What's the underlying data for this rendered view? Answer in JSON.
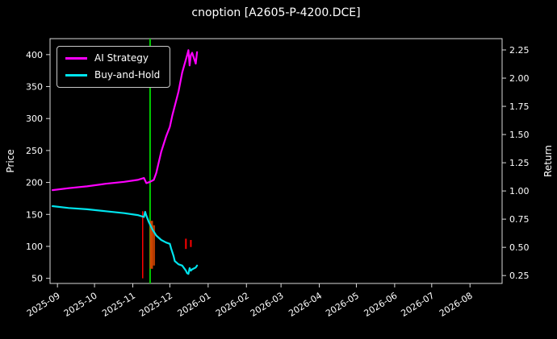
{
  "chart_data": {
    "type": "line",
    "title": "cnoption [A2605-P-4200.DCE]",
    "ylabel_left": "Price",
    "ylabel_right": "Return",
    "background": "#000000",
    "text_color": "#ffffff",
    "grid": false,
    "legend_position": "upper-left",
    "x_domain": [
      "2025-08-26",
      "2026-08-27"
    ],
    "x_tick_labels": [
      "2025-09",
      "2025-10",
      "2025-11",
      "2025-12",
      "2026-01",
      "2026-02",
      "2026-03",
      "2026-04",
      "2026-05",
      "2026-06",
      "2026-07",
      "2026-08"
    ],
    "ylim_left": [
      42,
      425
    ],
    "y_ticks_left": [
      50,
      100,
      150,
      200,
      250,
      300,
      350,
      400
    ],
    "ylim_right": [
      0.18,
      2.35
    ],
    "y_ticks_right": [
      0.25,
      0.5,
      0.75,
      1.0,
      1.25,
      1.5,
      1.75,
      2.0,
      2.25
    ],
    "legend": [
      {
        "label": "AI Strategy",
        "color": "#ff00ff"
      },
      {
        "label": "Buy-and-Hold",
        "color": "#00e5ee"
      }
    ],
    "series": [
      {
        "name": "AI Strategy",
        "color": "#ff00ff",
        "axis": "left",
        "points": [
          [
            "2025-08-28",
            188
          ],
          [
            "2025-09-10",
            191
          ],
          [
            "2025-09-25",
            194
          ],
          [
            "2025-10-10",
            198
          ],
          [
            "2025-10-25",
            201
          ],
          [
            "2025-11-05",
            204
          ],
          [
            "2025-11-10",
            207
          ],
          [
            "2025-11-12",
            199
          ],
          [
            "2025-11-15",
            201
          ],
          [
            "2025-11-18",
            204
          ],
          [
            "2025-11-20",
            215
          ],
          [
            "2025-11-24",
            248
          ],
          [
            "2025-11-28",
            272
          ],
          [
            "2025-12-01",
            287
          ],
          [
            "2025-12-03",
            305
          ],
          [
            "2025-12-08",
            342
          ],
          [
            "2025-12-11",
            372
          ],
          [
            "2025-12-15",
            399
          ],
          [
            "2025-12-16",
            407
          ],
          [
            "2025-12-17",
            383
          ],
          [
            "2025-12-18",
            399
          ],
          [
            "2025-12-19",
            403
          ],
          [
            "2025-12-22",
            386
          ],
          [
            "2025-12-23",
            404
          ]
        ]
      },
      {
        "name": "Buy-and-Hold",
        "color": "#00e5ee",
        "axis": "left",
        "points": [
          [
            "2025-08-28",
            163
          ],
          [
            "2025-09-10",
            160
          ],
          [
            "2025-09-25",
            158
          ],
          [
            "2025-10-10",
            155
          ],
          [
            "2025-10-25",
            152
          ],
          [
            "2025-11-05",
            149
          ],
          [
            "2025-11-10",
            146
          ],
          [
            "2025-11-11",
            154
          ],
          [
            "2025-11-12",
            148
          ],
          [
            "2025-11-14",
            138
          ],
          [
            "2025-11-17",
            126
          ],
          [
            "2025-11-20",
            117
          ],
          [
            "2025-11-24",
            110
          ],
          [
            "2025-11-28",
            106
          ],
          [
            "2025-12-01",
            104
          ],
          [
            "2025-12-02",
            97
          ],
          [
            "2025-12-04",
            85
          ],
          [
            "2025-12-05",
            77
          ],
          [
            "2025-12-08",
            72
          ],
          [
            "2025-12-11",
            70
          ],
          [
            "2025-12-14",
            62
          ],
          [
            "2025-12-15",
            58
          ],
          [
            "2025-12-16",
            57
          ],
          [
            "2025-12-17",
            66
          ],
          [
            "2025-12-18",
            62
          ],
          [
            "2025-12-19",
            64
          ],
          [
            "2025-12-22",
            67
          ],
          [
            "2025-12-23",
            70
          ]
        ]
      }
    ],
    "markers": [
      {
        "type": "vline",
        "date": "2025-11-09",
        "color": "#ff0000",
        "width": 1.5,
        "price_from": 50,
        "price_to": 155
      },
      {
        "type": "vline",
        "date": "2025-11-15",
        "color": "#00cc00",
        "width": 2,
        "price_from": 42,
        "price_to": 425
      },
      {
        "type": "vline",
        "date": "2025-11-16",
        "color": "#cc4400",
        "width": 4,
        "price_from": 65,
        "price_to": 140
      },
      {
        "type": "vline",
        "date": "2025-11-18",
        "color": "#b33a00",
        "width": 3,
        "price_from": 70,
        "price_to": 133
      },
      {
        "type": "vline",
        "date": "2025-12-14",
        "color": "#ff0000",
        "width": 2,
        "price_from": 96,
        "price_to": 112
      },
      {
        "type": "vline",
        "date": "2025-12-18",
        "color": "#ff0000",
        "width": 2,
        "price_from": 99,
        "price_to": 110
      }
    ]
  }
}
